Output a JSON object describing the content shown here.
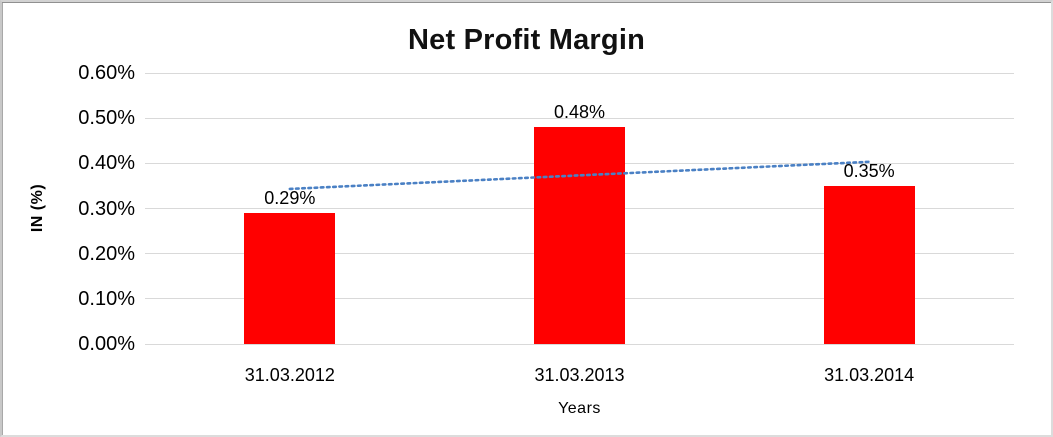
{
  "chart_data": {
    "type": "bar",
    "title": "Net Profit Margin",
    "categories": [
      "31.03.2012",
      "31.03.2013",
      "31.03.2014"
    ],
    "values": [
      0.29,
      0.48,
      0.35
    ],
    "data_labels": [
      "0.29%",
      "0.48%",
      "0.35%"
    ],
    "xlabel": "Years",
    "ylabel": "IN (%)",
    "ylim": [
      0,
      0.6
    ],
    "ytick_step": 0.1,
    "ytick_labels": [
      "0.00%",
      "0.10%",
      "0.20%",
      "0.30%",
      "0.40%",
      "0.50%",
      "0.60%"
    ],
    "grid": "horizontal",
    "legend": "none",
    "bar_color": "#ff0000",
    "gridline_color": "#d9d9d9",
    "trendline": {
      "type": "linear",
      "style": "dotted",
      "color": "#4a80c4",
      "series": "values"
    }
  }
}
